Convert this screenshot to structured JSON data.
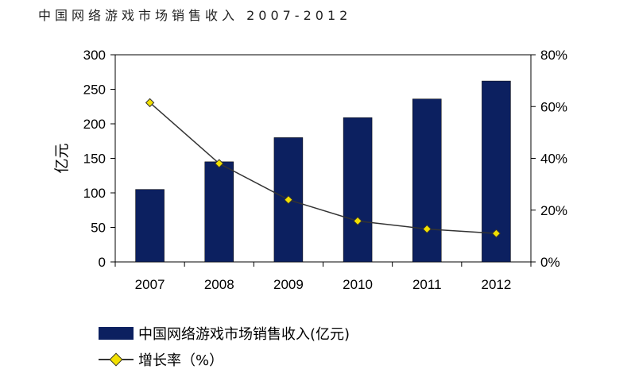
{
  "header": {
    "title": "中国网络游戏市场销售收入 2007-2012"
  },
  "chart_data": {
    "type": "bar",
    "categories": [
      "2007",
      "2008",
      "2009",
      "2010",
      "2011",
      "2012"
    ],
    "series": [
      {
        "name": "中国网络游戏市场销售收入(亿元)",
        "type": "bar",
        "axis": "left",
        "values": [
          105,
          145,
          180,
          209,
          236,
          262
        ]
      },
      {
        "name": "增长率（%）",
        "type": "line",
        "axis": "right",
        "values": [
          61.5,
          38.0,
          24.0,
          15.8,
          12.7,
          11.0
        ]
      }
    ],
    "ylabel": "亿元",
    "ylim": [
      0,
      300
    ],
    "yticks": [
      "0",
      "50",
      "100",
      "150",
      "200",
      "250",
      "300"
    ],
    "y2lim": [
      0,
      80
    ],
    "y2ticks": [
      "0%",
      "20%",
      "40%",
      "60%",
      "80%"
    ],
    "legend_position": "bottom-left",
    "grid": false,
    "colors": {
      "bar": "#0c2060",
      "line": "#333333",
      "marker": "#f2e000"
    }
  },
  "legend": {
    "bar_label": "中国网络游戏市场销售收入(亿元)",
    "line_label": "增长率（%）"
  }
}
